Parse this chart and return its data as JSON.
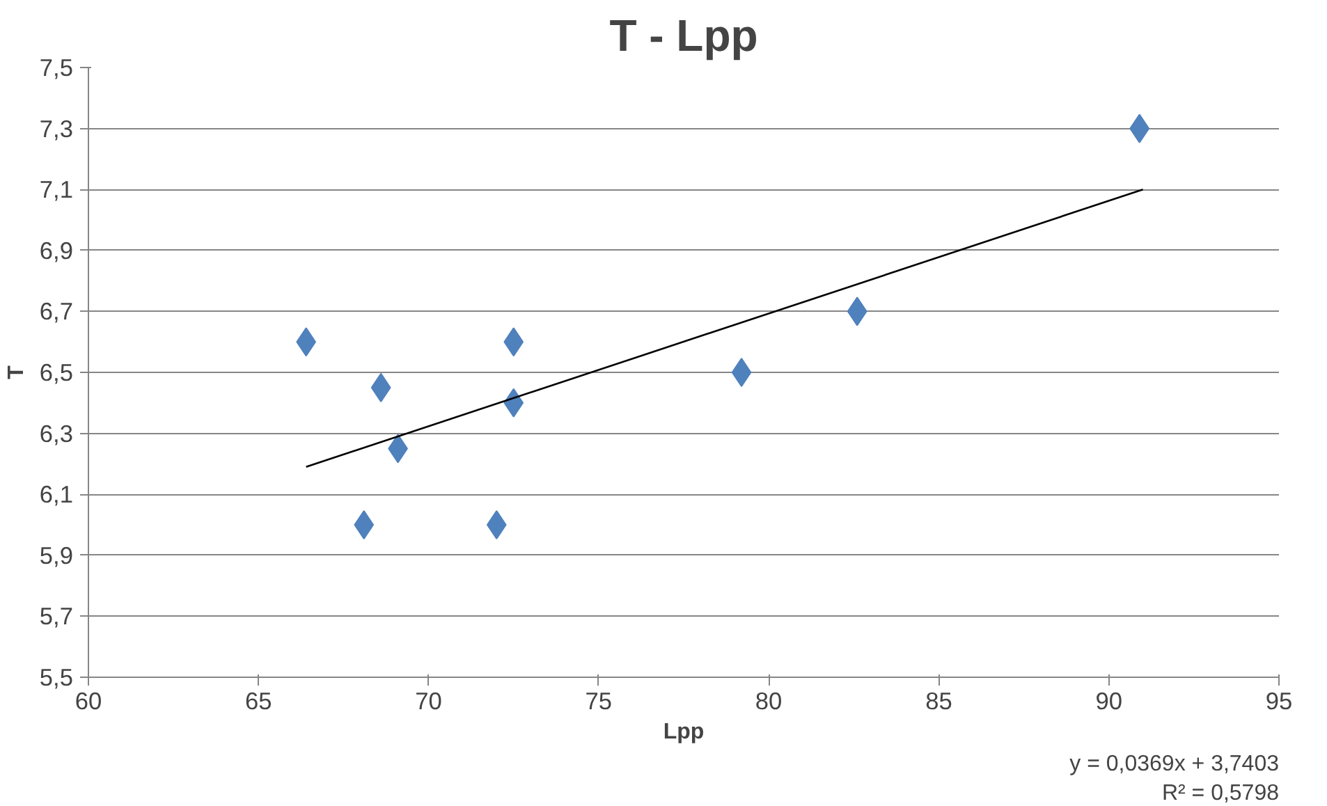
{
  "chart_data": {
    "type": "scatter",
    "title": "T - Lpp",
    "xlabel": "Lpp",
    "ylabel": "T",
    "series": [
      {
        "color": "#4f81bd",
        "x": [
          66.4,
          68.6,
          69.1,
          68.1,
          72.5,
          72.5,
          72.0,
          79.2,
          82.6,
          90.9
        ],
        "values": [
          6.6,
          6.45,
          6.25,
          6.0,
          6.6,
          6.4,
          6.0,
          6.5,
          6.7,
          7.3
        ]
      },
      {
        "type": "line",
        "color": "#000000",
        "marker": "none",
        "x": [
          66.4,
          91.0
        ],
        "values": [
          6.19,
          7.1
        ]
      }
    ],
    "marker": "diamond",
    "grid": "y",
    "xlim": [
      60,
      95
    ],
    "xticks": [
      60,
      65,
      70,
      75,
      80,
      85,
      90,
      95
    ],
    "ylim": [
      5.5,
      7.5
    ],
    "yticks": [
      {
        "value": 5.5,
        "label": "5,5"
      },
      {
        "value": 5.7,
        "label": "5,7"
      },
      {
        "value": 5.9,
        "label": "5,9"
      },
      {
        "value": 6.1,
        "label": "6,1"
      },
      {
        "value": 6.3,
        "label": "6,3"
      },
      {
        "value": 6.5,
        "label": "6,5"
      },
      {
        "value": 6.7,
        "label": "6,7"
      },
      {
        "value": 6.9,
        "label": "6,9"
      },
      {
        "value": 7.1,
        "label": "7,1"
      },
      {
        "value": 7.3,
        "label": "7,3"
      },
      {
        "value": 7.5,
        "label": "7,5"
      }
    ],
    "annotations": [
      "y = 0,0369x + 3,7403",
      "R² = 0,5798"
    ]
  }
}
